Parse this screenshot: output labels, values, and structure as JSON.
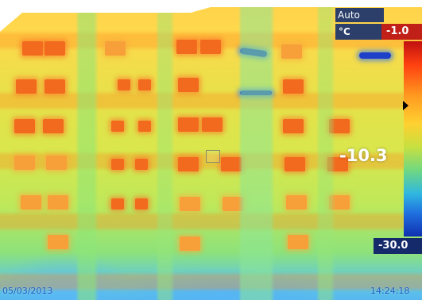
{
  "overlay": {
    "mode": "Auto",
    "unit": "°C",
    "scale_max": "-1.0",
    "scale_min": "-30.0",
    "spot_temperature": "-10.3",
    "date": "05/03/2013",
    "time": "14:24:18"
  },
  "colors": {
    "panel_blue": "#2b3f6a",
    "max_red": "#c02018",
    "min_navy": "#142a6a",
    "stamp_blue": "#1f5fbf"
  },
  "icons": {
    "scale_marker": "triangle-right-marker",
    "spot": "square-spot-marker"
  }
}
